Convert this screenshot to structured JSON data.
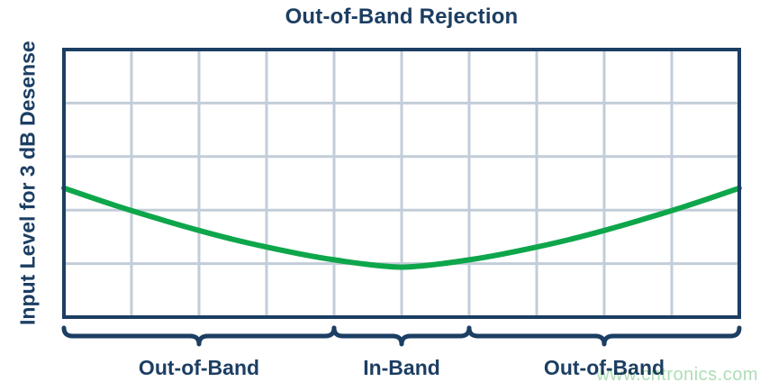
{
  "title": "Out-of-Band Rejection",
  "ylabel": "Input Level for 3 dB Desense",
  "watermark": "www.cntronics.com",
  "colors": {
    "navy": "#1c3e63",
    "curve_green": "#0ea64b",
    "grid": "#c2cdd9",
    "watermark_green": "#aeddb6",
    "background": "#ffffff"
  },
  "chart_data": {
    "type": "line",
    "title": "Out-of-Band Rejection",
    "xlabel": "",
    "ylabel": "Input Level for 3 dB Desense",
    "x_tick_labels": [],
    "y_tick_labels": [],
    "grid": {
      "on": true,
      "x_divisions": 10,
      "y_divisions": 5
    },
    "legend": "none",
    "series": [
      {
        "name": "Input Level for 3 dB Desense",
        "color": "#0ea64b",
        "shape": "symmetric bathtub curve, minimum in-band, rising out-of-band",
        "y_convention": "fraction of plot height measured from top of plot area",
        "points": [
          [
            0.0,
            0.518
          ],
          [
            0.05,
            0.561
          ],
          [
            0.1,
            0.602
          ],
          [
            0.15,
            0.64
          ],
          [
            0.2,
            0.676
          ],
          [
            0.25,
            0.709
          ],
          [
            0.3,
            0.738
          ],
          [
            0.35,
            0.764
          ],
          [
            0.4,
            0.786
          ],
          [
            0.45,
            0.803
          ],
          [
            0.5,
            0.813
          ],
          [
            0.55,
            0.803
          ],
          [
            0.6,
            0.786
          ],
          [
            0.65,
            0.764
          ],
          [
            0.7,
            0.738
          ],
          [
            0.75,
            0.709
          ],
          [
            0.8,
            0.676
          ],
          [
            0.85,
            0.64
          ],
          [
            0.9,
            0.602
          ],
          [
            0.95,
            0.561
          ],
          [
            1.0,
            0.518
          ]
        ]
      }
    ],
    "x_bands": [
      {
        "label": "Out-of-Band",
        "from": 0.0,
        "to": 0.4
      },
      {
        "label": "In-Band",
        "from": 0.4,
        "to": 0.6
      },
      {
        "label": "Out-of-Band",
        "from": 0.6,
        "to": 1.0
      }
    ]
  }
}
